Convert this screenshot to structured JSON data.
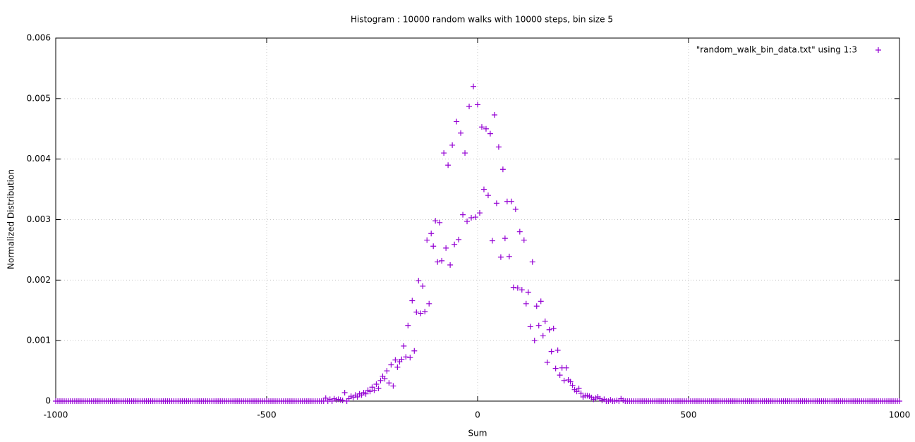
{
  "chart_data": {
    "type": "scatter",
    "title": "Histogram : 10000 random walks with 10000 steps, bin size 5",
    "xlabel": "Sum",
    "ylabel": "Normalized Distribution",
    "xlim": [
      -1000,
      1000
    ],
    "ylim": [
      0,
      0.006
    ],
    "xticks": [
      -1000,
      -500,
      0,
      500,
      1000
    ],
    "yticks": [
      0,
      0.001,
      0.002,
      0.003,
      0.004,
      0.005,
      0.006
    ],
    "grid": true,
    "legend": "top-right",
    "marker": "+",
    "series": [
      {
        "name": "\"random_walk_bin_data.txt\" using 1:3",
        "color": "#9400d3",
        "x": [
          -1000,
          -995,
          -990,
          -985,
          -980,
          -975,
          -970,
          -965,
          -960,
          -955,
          -950,
          -945,
          -940,
          -935,
          -930,
          -925,
          -920,
          -915,
          -910,
          -905,
          -900,
          -895,
          -890,
          -885,
          -880,
          -875,
          -870,
          -865,
          -860,
          -855,
          -850,
          -845,
          -840,
          -835,
          -830,
          -825,
          -820,
          -815,
          -810,
          -805,
          -800,
          -795,
          -790,
          -785,
          -780,
          -775,
          -770,
          -765,
          -760,
          -755,
          -750,
          -745,
          -740,
          -735,
          -730,
          -725,
          -720,
          -715,
          -710,
          -705,
          -700,
          -695,
          -690,
          -685,
          -680,
          -675,
          -670,
          -665,
          -660,
          -655,
          -650,
          -645,
          -640,
          -635,
          -630,
          -625,
          -620,
          -615,
          -610,
          -605,
          -600,
          -595,
          -590,
          -585,
          -580,
          -575,
          -570,
          -565,
          -560,
          -555,
          -550,
          -545,
          -540,
          -535,
          -530,
          -525,
          -520,
          -515,
          -510,
          -505,
          -500,
          -495,
          -490,
          -485,
          -480,
          -475,
          -470,
          -465,
          -460,
          -455,
          -450,
          -445,
          -440,
          -435,
          -430,
          -425,
          -420,
          -415,
          -410,
          -405,
          -400,
          -395,
          -390,
          -385,
          -380,
          -375,
          -370,
          -365,
          -360,
          -355,
          -350,
          -345,
          -340,
          -335,
          -330,
          -325,
          -320,
          -315,
          -310,
          -305,
          -300,
          -295,
          -290,
          -285,
          -280,
          -275,
          -270,
          -265,
          -260,
          -255,
          -250,
          -245,
          -240,
          -235,
          -230,
          -225,
          -220,
          -215,
          -210,
          -205,
          -200,
          -195,
          -190,
          -185,
          -180,
          -175,
          -170,
          -165,
          -160,
          -155,
          -150,
          -145,
          -140,
          -135,
          -130,
          -125,
          -120,
          -115,
          -110,
          -105,
          -100,
          -95,
          -90,
          -85,
          -80,
          -75,
          -70,
          -65,
          -60,
          -55,
          -50,
          -45,
          -40,
          -35,
          -30,
          -25,
          -20,
          -15,
          -10,
          -5,
          0,
          5,
          10,
          15,
          20,
          25,
          30,
          35,
          40,
          45,
          50,
          55,
          60,
          65,
          70,
          75,
          80,
          85,
          90,
          95,
          100,
          105,
          110,
          115,
          120,
          125,
          130,
          135,
          140,
          145,
          150,
          155,
          160,
          165,
          170,
          175,
          180,
          185,
          190,
          195,
          200,
          205,
          210,
          215,
          220,
          225,
          230,
          235,
          240,
          245,
          250,
          255,
          260,
          265,
          270,
          275,
          280,
          285,
          290,
          295,
          300,
          305,
          310,
          315,
          320,
          325,
          330,
          335,
          340,
          345,
          350,
          355,
          360,
          365,
          370,
          375,
          380,
          385,
          390,
          395,
          400,
          405,
          410,
          415,
          420,
          425,
          430,
          435,
          440,
          445,
          450,
          455,
          460,
          465,
          470,
          475,
          480,
          485,
          490,
          495,
          500,
          505,
          510,
          515,
          520,
          525,
          530,
          535,
          540,
          545,
          550,
          555,
          560,
          565,
          570,
          575,
          580,
          585,
          590,
          595,
          600,
          605,
          610,
          615,
          620,
          625,
          630,
          635,
          640,
          645,
          650,
          655,
          660,
          665,
          670,
          675,
          680,
          685,
          690,
          695,
          700,
          705,
          710,
          715,
          720,
          725,
          730,
          735,
          740,
          745,
          750,
          755,
          760,
          765,
          770,
          775,
          780,
          785,
          790,
          795,
          800,
          805,
          810,
          815,
          820,
          825,
          830,
          835,
          840,
          845,
          850,
          855,
          860,
          865,
          870,
          875,
          880,
          885,
          890,
          895,
          900,
          905,
          910,
          915,
          920,
          925,
          930,
          935,
          940,
          945,
          950,
          955,
          960,
          965,
          970,
          975,
          980,
          985,
          990,
          995,
          1000
        ],
        "values": [
          0,
          0,
          0,
          0,
          0,
          0,
          0,
          0,
          0,
          0,
          0,
          0,
          0,
          0,
          0,
          0,
          0,
          0,
          0,
          0,
          0,
          0,
          0,
          0,
          0,
          0,
          0,
          0,
          0,
          0,
          0,
          0,
          0,
          0,
          0,
          0,
          0,
          0,
          0,
          0,
          0,
          0,
          0,
          0,
          0,
          0,
          0,
          0,
          0,
          0,
          0,
          0,
          0,
          0,
          0,
          0,
          0,
          0,
          0,
          0,
          0,
          0,
          0,
          0,
          0,
          0,
          0,
          0,
          0,
          0,
          0,
          0,
          0,
          0,
          0,
          0,
          0,
          0,
          0,
          0,
          0,
          0,
          0,
          0,
          0,
          0,
          0,
          0,
          0,
          0,
          0,
          0,
          0,
          0,
          0,
          0,
          0,
          0,
          0,
          0,
          0,
          0,
          0,
          0,
          0,
          0,
          0,
          0,
          0,
          0,
          0,
          0,
          0,
          0,
          0,
          0,
          0,
          0,
          0,
          0,
          0,
          0,
          0,
          0,
          0,
          0,
          0,
          0,
          5e-05,
          0,
          3e-05,
          0,
          4e-05,
          2e-05,
          3e-05,
          2e-05,
          1e-05,
          0.00014,
          0,
          4e-05,
          8e-05,
          6e-05,
          0.0001,
          7e-05,
          0.00012,
          0.0001,
          0.00014,
          0.00012,
          0.00018,
          0.00016,
          0.00023,
          0.00018,
          0.00028,
          0.00021,
          0.00034,
          0.00041,
          0.00037,
          0.0005,
          0.0003,
          0.0006,
          0.00025,
          0.00068,
          0.00056,
          0.00065,
          0.00069,
          0.00091,
          0.00073,
          0.00125,
          0.00072,
          0.00166,
          0.00083,
          0.00147,
          0.00199,
          0.00145,
          0.0019,
          0.00148,
          0.00266,
          0.00161,
          0.00277,
          0.00256,
          0.00298,
          0.0023,
          0.00295,
          0.00232,
          0.0041,
          0.00253,
          0.0039,
          0.00225,
          0.00423,
          0.00259,
          0.00462,
          0.00267,
          0.00443,
          0.00308,
          0.0041,
          0.00297,
          0.00487,
          0.00303,
          0.0052,
          0.00304,
          0.0049,
          0.00311,
          0.00453,
          0.0035,
          0.0045,
          0.0034,
          0.00442,
          0.00265,
          0.00473,
          0.00327,
          0.0042,
          0.00238,
          0.00383,
          0.00269,
          0.0033,
          0.00239,
          0.0033,
          0.00188,
          0.00317,
          0.00187,
          0.0028,
          0.00184,
          0.00266,
          0.00161,
          0.0018,
          0.00123,
          0.0023,
          0.001,
          0.00157,
          0.00125,
          0.00165,
          0.00108,
          0.00132,
          0.00064,
          0.00118,
          0.00082,
          0.0012,
          0.00054,
          0.00084,
          0.00043,
          0.00055,
          0.00034,
          0.00055,
          0.00035,
          0.00032,
          0.00026,
          0.00019,
          0.00016,
          0.00021,
          0.00013,
          7e-05,
          9e-05,
          9e-05,
          8e-05,
          6e-05,
          3e-05,
          5e-05,
          7e-05,
          4e-05,
          1e-05,
          3e-05,
          0,
          0,
          2e-05,
          0,
          0,
          1e-05,
          0,
          4e-05,
          1e-05,
          0,
          0,
          0,
          0,
          0,
          0,
          0,
          0,
          0,
          0,
          0,
          0,
          0,
          0,
          0,
          0,
          0,
          0,
          0,
          0,
          0,
          0,
          0,
          0,
          0,
          0,
          0,
          0,
          0,
          0,
          0,
          0,
          0,
          0,
          0,
          0,
          0,
          0,
          0,
          0,
          0,
          0,
          0,
          0,
          0,
          0,
          0,
          0,
          0,
          0,
          0,
          0,
          0,
          0,
          0,
          0,
          0,
          0,
          0,
          0,
          0,
          0,
          0,
          0,
          0,
          0,
          0,
          0,
          0,
          0,
          0,
          0,
          0,
          0,
          0,
          0,
          0,
          0,
          0,
          0,
          0,
          0,
          0,
          0,
          0,
          0,
          0,
          0,
          0,
          0,
          0,
          0,
          0,
          0,
          0,
          0,
          0,
          0,
          0,
          0,
          0,
          0,
          0,
          0,
          0,
          0,
          0,
          0,
          0,
          0,
          0,
          0,
          0,
          0,
          0,
          0,
          0,
          0,
          0,
          0,
          0,
          0,
          0,
          0,
          0,
          0,
          0,
          0,
          0,
          0,
          0
        ]
      }
    ]
  }
}
